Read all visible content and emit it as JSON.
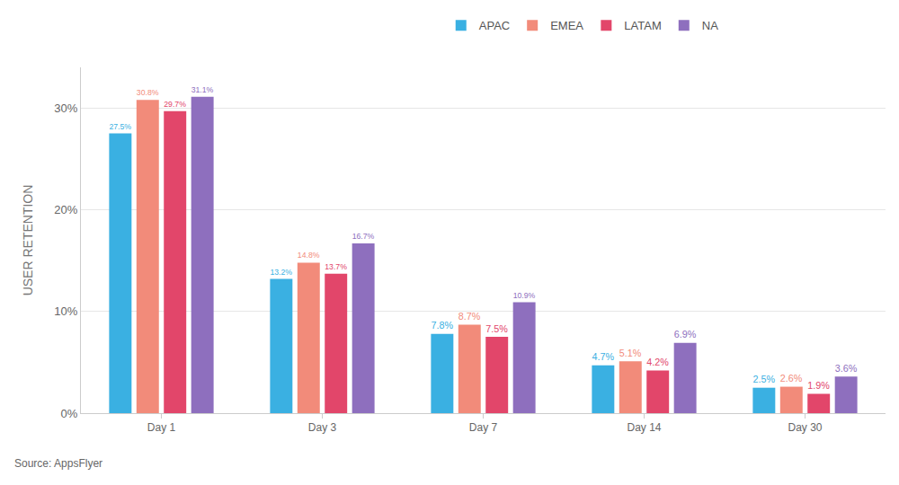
{
  "chart_data": {
    "type": "bar",
    "y_label": "USER RETENTION",
    "source": "Source: AppsFlyer",
    "categories": [
      "Day 1",
      "Day 3",
      "Day 7",
      "Day 14",
      "Day 30"
    ],
    "series": [
      {
        "name": "APAC",
        "color": "#3ab0e2",
        "values": [
          27.5,
          13.2,
          7.8,
          4.7,
          2.5
        ],
        "value_labels": [
          "27.5%",
          "13.2%",
          "7.8%",
          "4.7%",
          "2.5%"
        ]
      },
      {
        "name": "EMEA",
        "color": "#f28b7a",
        "values": [
          30.8,
          14.8,
          8.7,
          5.1,
          2.6
        ],
        "value_labels": [
          "30.8%",
          "14.8%",
          "8.7%",
          "5.1%",
          "2.6%"
        ]
      },
      {
        "name": "LATAM",
        "color": "#e2466a",
        "values": [
          29.7,
          13.7,
          7.5,
          4.2,
          1.9
        ],
        "value_labels": [
          "29.7%",
          "13.7%",
          "7.5%",
          "4.2%",
          "1.9%"
        ]
      },
      {
        "name": "NA",
        "color": "#8e6fbe",
        "values": [
          31.1,
          16.7,
          10.9,
          6.9,
          3.6
        ],
        "value_labels": [
          "31.1%",
          "16.7%",
          "10.9%",
          "6.9%",
          "3.6%"
        ]
      }
    ],
    "ylim": [
      0,
      34
    ],
    "yticks": [
      {
        "value": 0,
        "label": "0%"
      },
      {
        "value": 10,
        "label": "10%"
      },
      {
        "value": 20,
        "label": "20%"
      },
      {
        "value": 30,
        "label": "30%"
      }
    ],
    "grid": true,
    "legend": "top",
    "data_labels": true
  }
}
